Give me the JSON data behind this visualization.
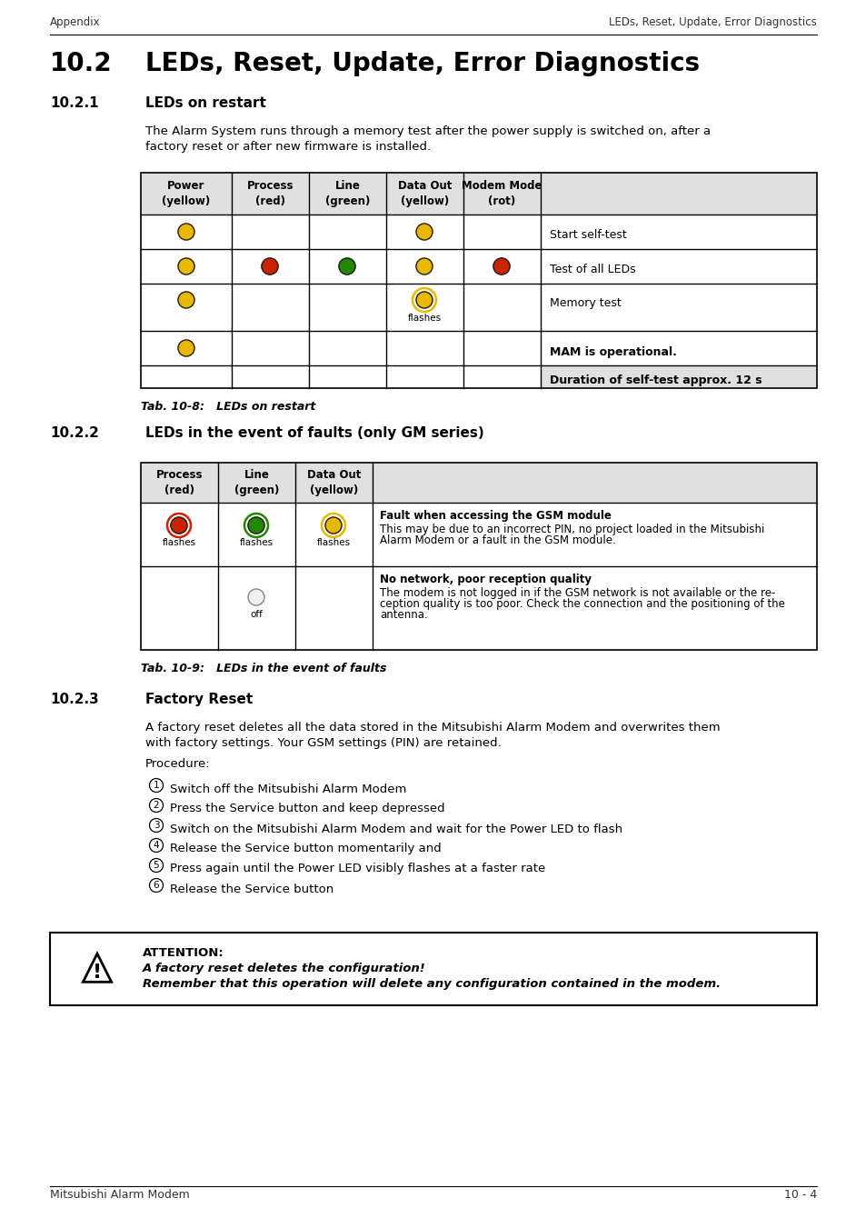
{
  "page_title_left": "Appendix",
  "page_title_right": "LEDs, Reset, Update, Error Diagnostics",
  "section_number": "10.2",
  "section_title": "LEDs, Reset, Update, Error Diagnostics",
  "sub1_number": "10.2.1",
  "sub1_title": "LEDs on restart",
  "sub1_text_line1": "The Alarm System runs through a memory test after the power supply is switched on, after a",
  "sub1_text_line2": "factory reset or after new firmware is installed.",
  "table1_caption": "Tab. 10-8:   LEDs on restart",
  "sub2_number": "10.2.2",
  "sub2_title": "LEDs in the event of faults (only GM series)",
  "table2_caption": "Tab. 10-9:   LEDs in the event of faults",
  "sub3_number": "10.2.3",
  "sub3_title": "Factory Reset",
  "sub3_text_line1": "A factory reset deletes all the data stored in the Mitsubishi Alarm Modem and overwrites them",
  "sub3_text_line2": "with factory settings. Your GSM settings (PIN) are retained.",
  "sub3_text3": "Procedure:",
  "procedure_items": [
    "Switch off the Mitsubishi Alarm Modem",
    "Press the Service button and keep depressed",
    "Switch on the Mitsubishi Alarm Modem and wait for the Power LED to flash",
    "Release the Service button momentarily and",
    "Press again until the Power LED visibly flashes at a faster rate",
    "Release the Service button"
  ],
  "attention_title": "ATTENTION:",
  "attention_line1": "A factory reset deletes the configuration!",
  "attention_line2": "Remember that this operation will delete any configuration contained in the modem.",
  "footer_left": "Mitsubishi Alarm Modem",
  "footer_right": "10 - 4",
  "bg_color": "#ffffff",
  "header_bg": "#e0e0e0",
  "yellow_led": "#e8b800",
  "red_led": "#cc2200",
  "green_led": "#228800",
  "grey_led": "#d0d0d0"
}
